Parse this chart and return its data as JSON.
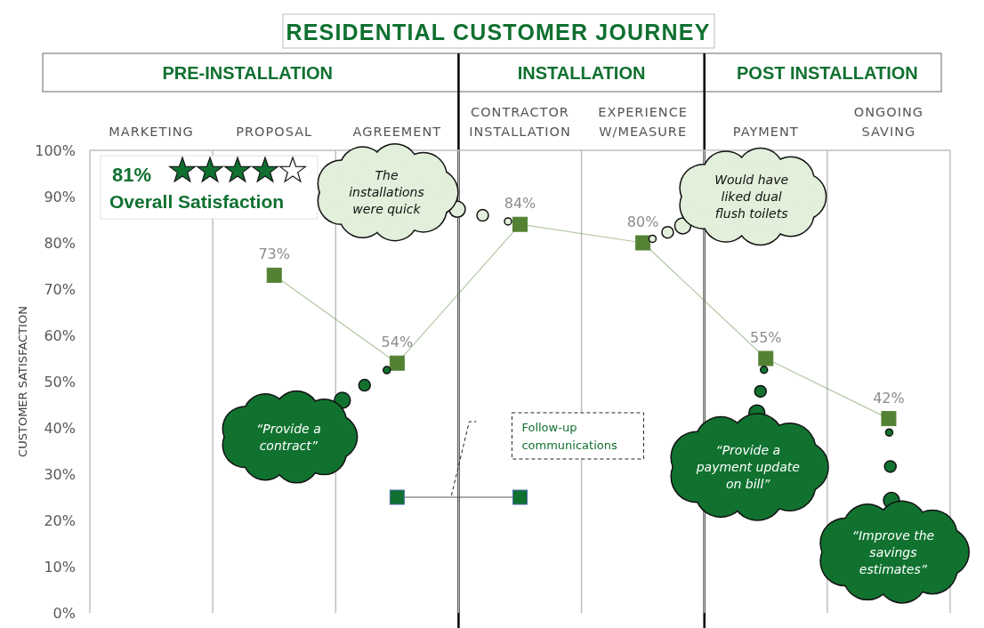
{
  "chart_data": {
    "type": "line",
    "title": "RESIDENTIAL CUSTOMER JOURNEY",
    "ylabel": "CUSTOMER SATISFACTION",
    "categories": [
      "MARKETING",
      "PROPOSAL",
      "AGREEMENT",
      "CONTRACTOR\nINSTALLATION",
      "EXPERIENCE\nW/MEASURE",
      "PAYMENT",
      "ONGOING\nSAVING"
    ],
    "series": [
      {
        "color": "#548235",
        "values": [
          null,
          73,
          54,
          84,
          80,
          55,
          42
        ],
        "value_labels": [
          null,
          "73%",
          "54%",
          "84%",
          "80%",
          "55%",
          "42%"
        ]
      },
      {
        "name": "Follow-up communications",
        "color": "#107030",
        "values": [
          null,
          null,
          25,
          25,
          null,
          null,
          null
        ]
      }
    ],
    "ylim": [
      0,
      100
    ],
    "yticks": [
      {
        "value": 0,
        "label": "0%"
      },
      {
        "value": 10,
        "label": "10%"
      },
      {
        "value": 20,
        "label": "20%"
      },
      {
        "value": 30,
        "label": "30%"
      },
      {
        "value": 40,
        "label": "40%"
      },
      {
        "value": 50,
        "label": "50%"
      },
      {
        "value": 60,
        "label": "60%"
      },
      {
        "value": 70,
        "label": "70%"
      },
      {
        "value": 80,
        "label": "80%"
      },
      {
        "value": 90,
        "label": "90%"
      },
      {
        "value": 100,
        "label": "100%"
      }
    ],
    "annotations": [
      "81%",
      "Overall Satisfaction",
      "PRE-INSTALLATION",
      "INSTALLATION",
      "POST INSTALLATION",
      "The installations were quick",
      "Would have liked dual flush toilets",
      "“Provide a contract”",
      "“Provide a payment update on bill”",
      "“Improve the savings estimates”"
    ],
    "grid": "x",
    "marker": "square",
    "line_style": "solid"
  }
}
